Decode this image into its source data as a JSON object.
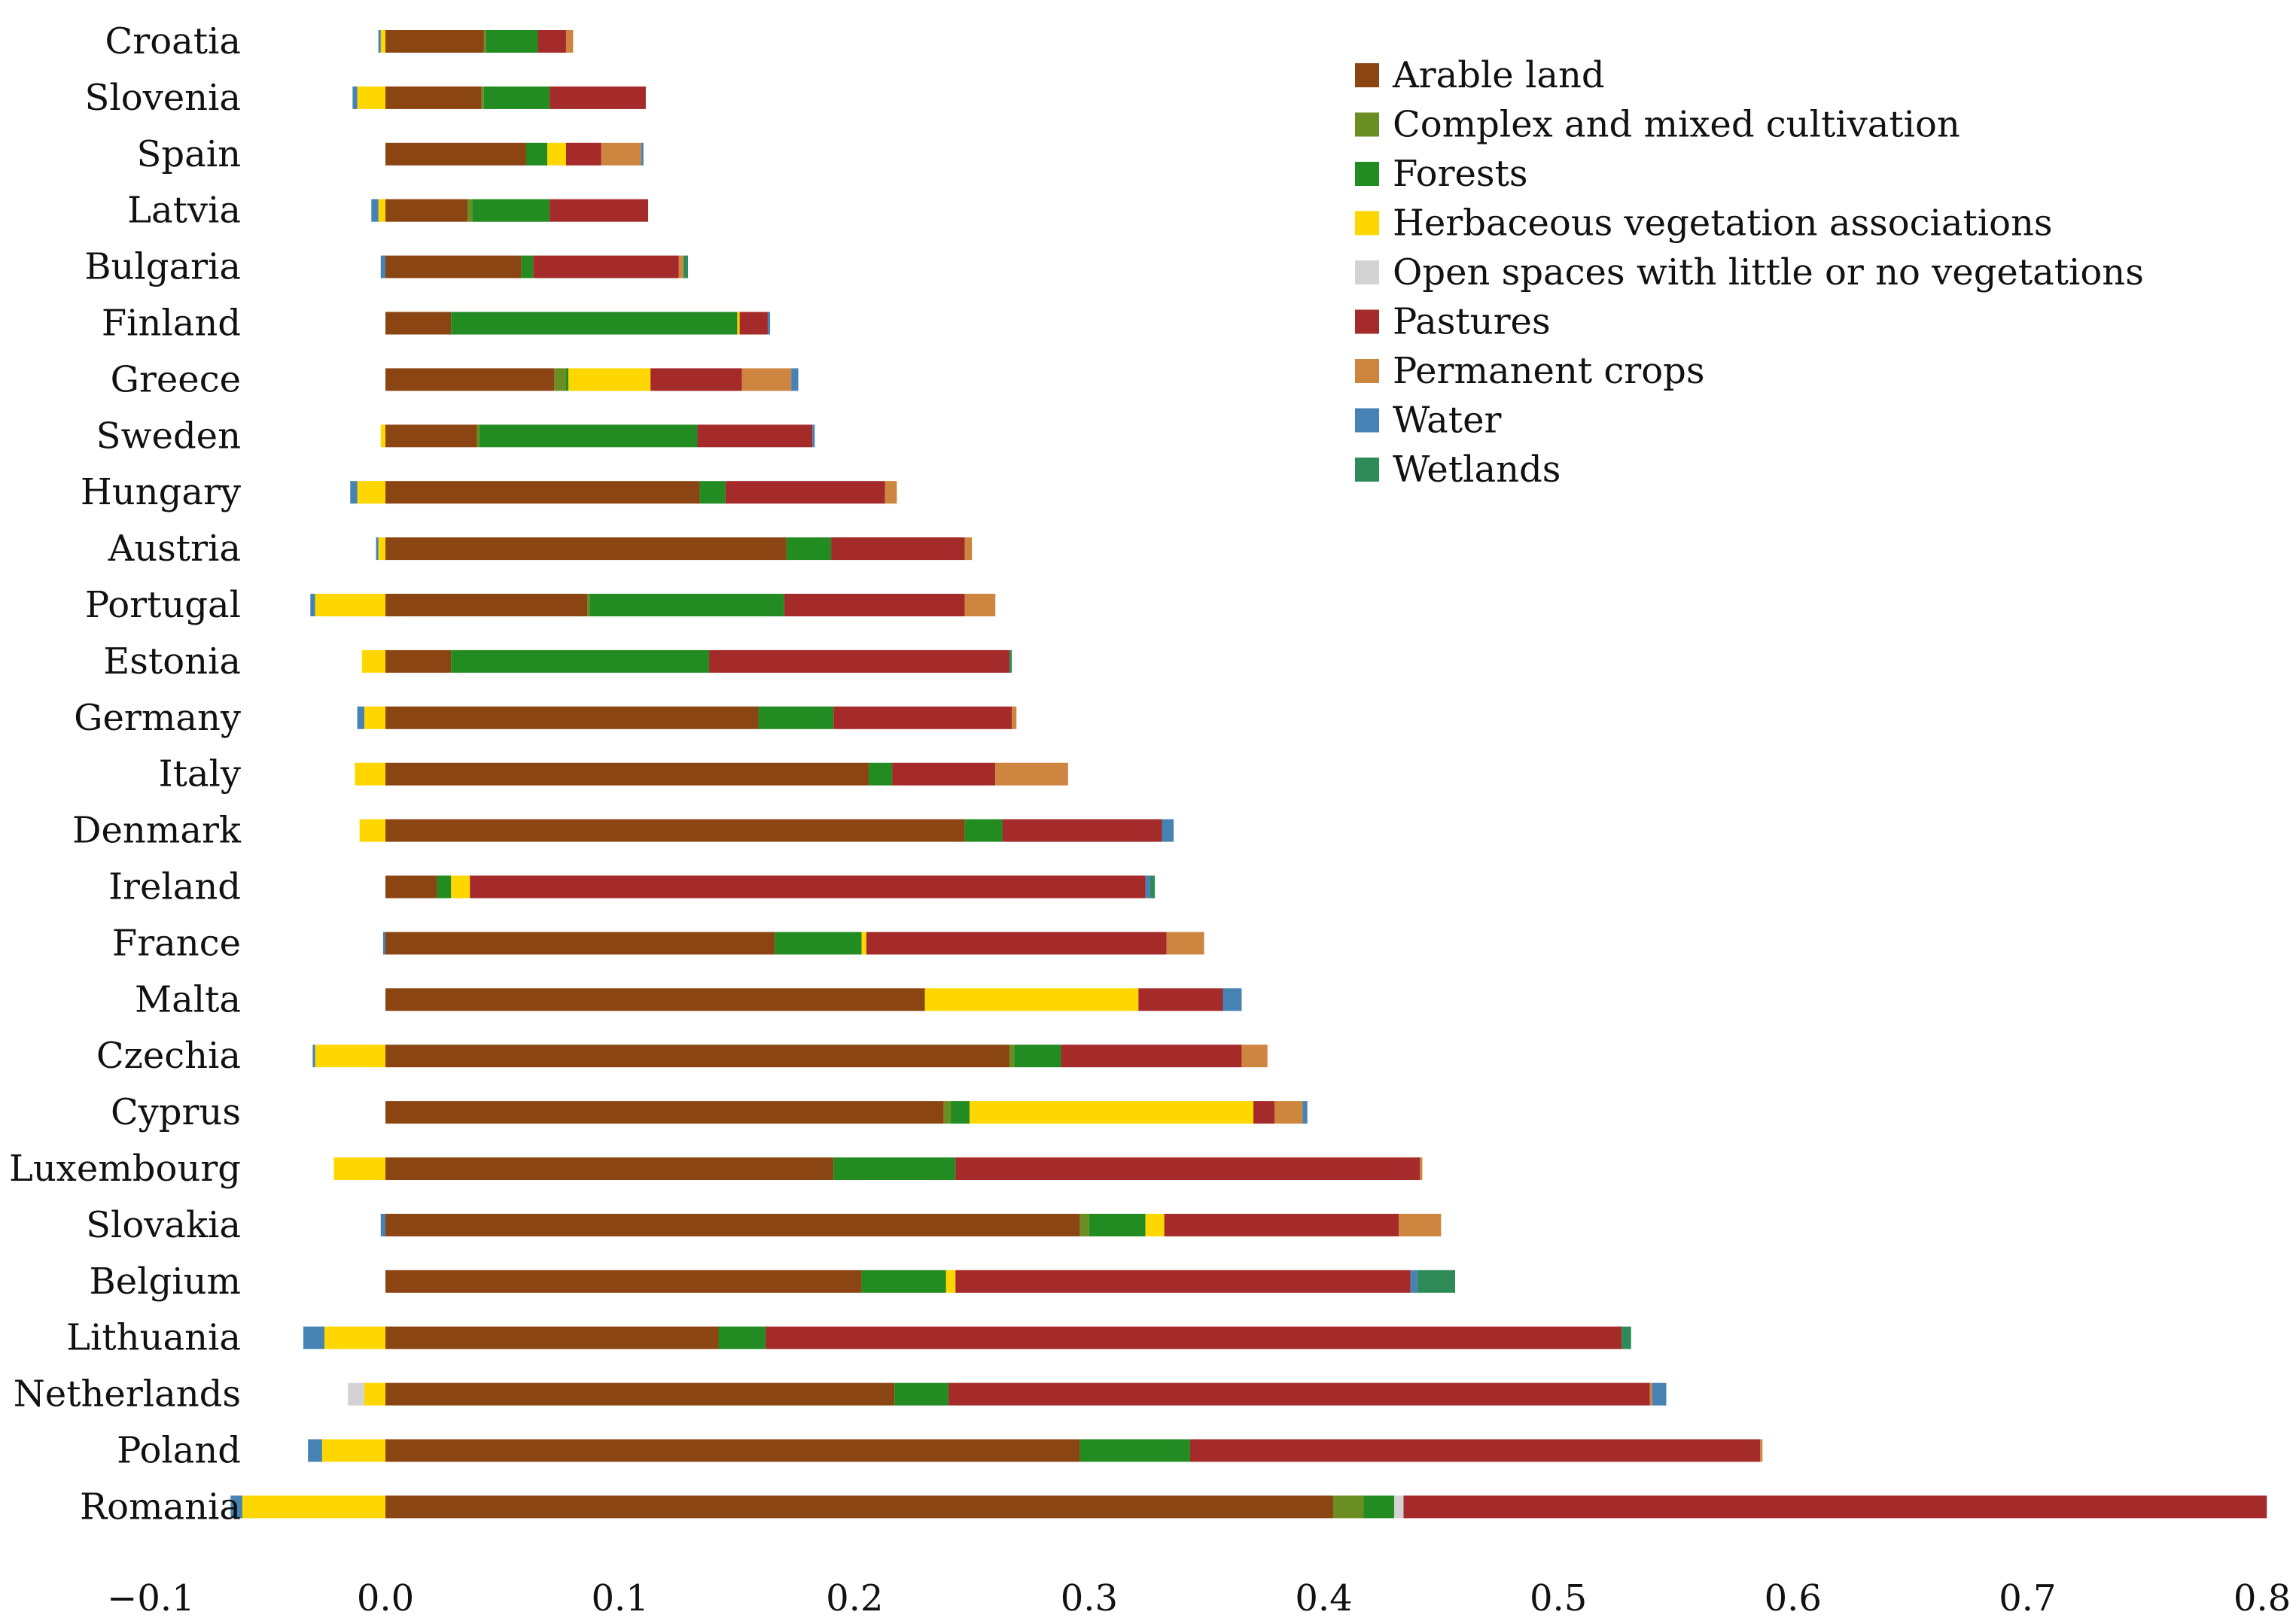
{
  "chart_data": {
    "type": "bar",
    "orientation": "horizontal",
    "stacked": true,
    "title": "",
    "xlabel": "",
    "ylabel": "",
    "xlim": [
      -0.1,
      0.8
    ],
    "x_ticks": [
      -0.1,
      0.0,
      0.1,
      0.2,
      0.3,
      0.4,
      0.5,
      0.6,
      0.7,
      0.8
    ],
    "x_tick_labels": [
      "−0.1",
      "0.0",
      "0.1",
      "0.2",
      "0.3",
      "0.4",
      "0.5",
      "0.6",
      "0.7",
      "0.8"
    ],
    "grid": false,
    "legend_position": "top-right",
    "categories": [
      "Croatia",
      "Slovenia",
      "Spain",
      "Latvia",
      "Bulgaria",
      "Finland",
      "Greece",
      "Sweden",
      "Hungary",
      "Austria",
      "Portugal",
      "Estonia",
      "Germany",
      "Italy",
      "Denmark",
      "Ireland",
      "France",
      "Malta",
      "Czechia",
      "Cyprus",
      "Luxembourg",
      "Slovakia",
      "Belgium",
      "Lithuania",
      "Netherlands",
      "Poland",
      "Romania"
    ],
    "series": [
      {
        "name": "Arable land",
        "color": "#8B4513",
        "values": [
          0.042,
          0.041,
          0.06,
          0.035,
          0.058,
          0.028,
          0.072,
          0.039,
          0.134,
          0.171,
          0.086,
          0.028,
          0.159,
          0.206,
          0.247,
          0.022,
          0.166,
          0.23,
          0.266,
          0.238,
          0.191,
          0.296,
          0.203,
          0.142,
          0.217,
          0.296,
          0.404
        ]
      },
      {
        "name": "Complex and mixed cultivation",
        "color": "#6B8E23",
        "values": [
          0.001,
          0.001,
          0.0,
          0.002,
          0.0,
          0.0,
          0.005,
          0.001,
          0.0,
          0.0,
          0.001,
          0.0,
          0.0,
          0.0,
          0.0,
          0.0,
          0.0,
          0.0,
          0.002,
          0.003,
          0.0,
          0.004,
          0.0,
          0.0,
          0.0,
          0.0,
          0.013
        ]
      },
      {
        "name": "Forests",
        "color": "#228B22",
        "values": [
          0.022,
          0.028,
          0.009,
          0.033,
          0.005,
          0.122,
          0.001,
          0.093,
          0.011,
          0.019,
          0.083,
          0.11,
          0.032,
          0.01,
          0.016,
          0.006,
          0.037,
          0.0,
          0.02,
          0.008,
          0.052,
          0.024,
          0.036,
          0.02,
          0.023,
          0.047,
          0.013
        ]
      },
      {
        "name": "Herbaceous vegetation associations",
        "color": "#FFD700",
        "values": [
          -0.002,
          -0.012,
          0.008,
          -0.003,
          0.0,
          0.001,
          0.035,
          -0.002,
          -0.012,
          -0.003,
          -0.03,
          -0.01,
          -0.009,
          -0.013,
          -0.011,
          0.008,
          0.002,
          0.091,
          -0.03,
          0.121,
          -0.022,
          0.008,
          0.004,
          -0.026,
          -0.009,
          -0.027,
          -0.061
        ]
      },
      {
        "name": "Open spaces with little or no vegetations",
        "color": "#D3D3D3",
        "values": [
          0,
          0,
          0,
          0,
          0,
          0,
          0,
          0,
          0,
          0,
          0,
          0,
          0,
          0,
          0,
          0,
          0,
          0,
          0,
          0,
          0,
          0,
          0,
          0,
          -0.007,
          0,
          0.004
        ]
      },
      {
        "name": "Pastures",
        "color": "#A52A2A",
        "values": [
          0.012,
          0.041,
          0.015,
          0.042,
          0.062,
          0.012,
          0.039,
          0.049,
          0.068,
          0.057,
          0.077,
          0.128,
          0.076,
          0.044,
          0.068,
          0.288,
          0.128,
          0.036,
          0.077,
          0.009,
          0.198,
          0.1,
          0.194,
          0.365,
          0.299,
          0.243,
          0.368
        ]
      },
      {
        "name": "Permanent crops",
        "color": "#CD853F",
        "values": [
          0.003,
          0.0,
          0.017,
          0.0,
          0.002,
          0.0,
          0.021,
          0.0,
          0.005,
          0.003,
          0.013,
          0.0,
          0.002,
          0.031,
          0.0,
          0.0,
          0.016,
          0.0,
          0.011,
          0.012,
          0.001,
          0.018,
          0.0,
          0.0,
          0.001,
          0.001,
          0.0
        ]
      },
      {
        "name": "Water",
        "color": "#4682B4",
        "values": [
          -0.001,
          -0.002,
          0.001,
          -0.003,
          -0.002,
          0.001,
          0.003,
          0.001,
          -0.003,
          -0.001,
          -0.002,
          0.0,
          -0.003,
          0.0,
          0.005,
          0.002,
          -0.001,
          0.008,
          -0.001,
          0.002,
          0.0,
          -0.002,
          0.003,
          -0.009,
          0.006,
          -0.006,
          -0.005
        ]
      },
      {
        "name": "Wetlands",
        "color": "#2E8B57",
        "values": [
          0.0,
          0.0,
          0.0,
          0.0,
          0.002,
          0.0,
          0.0,
          0.0,
          0.0,
          0.0,
          0.0,
          0.001,
          0.0,
          0.0,
          0.0,
          0.002,
          0.0,
          0.0,
          0.0,
          0.0,
          0.0,
          0.0,
          0.016,
          0.004,
          0.0,
          0.0,
          0.0
        ]
      }
    ]
  }
}
